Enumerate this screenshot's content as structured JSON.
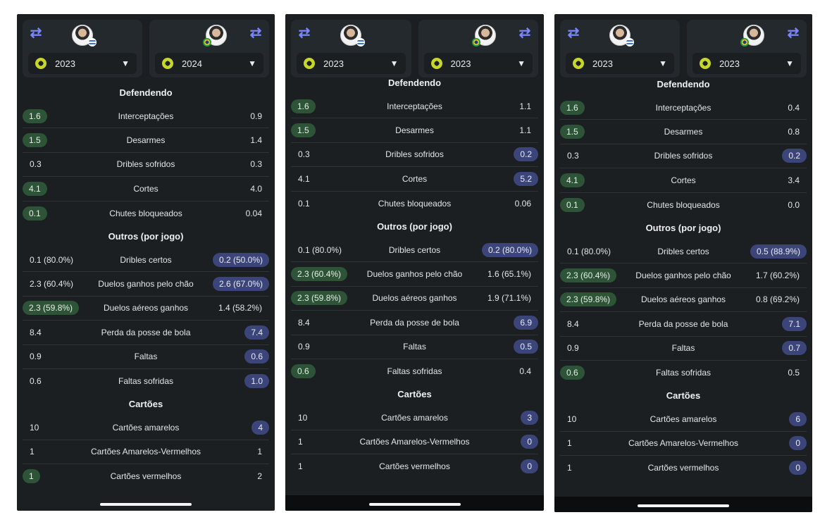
{
  "panels": [
    {
      "left": {
        "year": "2023",
        "flag": "uy"
      },
      "right": {
        "year": "2024",
        "flag": "br"
      },
      "sections": [
        {
          "title": "Defendendo",
          "rows": [
            {
              "label": "Interceptações",
              "l": "1.6",
              "lh": "g",
              "r": "0.9",
              "rh": ""
            },
            {
              "label": "Desarmes",
              "l": "1.5",
              "lh": "g",
              "r": "1.4",
              "rh": ""
            },
            {
              "label": "Dribles sofridos",
              "l": "0.3",
              "lh": "",
              "r": "0.3",
              "rh": ""
            },
            {
              "label": "Cortes",
              "l": "4.1",
              "lh": "g",
              "r": "4.0",
              "rh": ""
            },
            {
              "label": "Chutes bloqueados",
              "l": "0.1",
              "lh": "g",
              "r": "0.04",
              "rh": ""
            }
          ]
        },
        {
          "title": "Outros (por jogo)",
          "rows": [
            {
              "label": "Dribles certos",
              "l": "0.1 (80.0%)",
              "lh": "",
              "r": "0.2 (50.0%)",
              "rh": "b"
            },
            {
              "label": "Duelos ganhos pelo chão",
              "l": "2.3 (60.4%)",
              "lh": "",
              "r": "2.6 (67.0%)",
              "rh": "b"
            },
            {
              "label": "Duelos aéreos ganhos",
              "l": "2.3 (59.8%)",
              "lh": "g",
              "r": "1.4 (58.2%)",
              "rh": ""
            },
            {
              "label": "Perda da posse de bola",
              "l": "8.4",
              "lh": "",
              "r": "7.4",
              "rh": "b"
            },
            {
              "label": "Faltas",
              "l": "0.9",
              "lh": "",
              "r": "0.6",
              "rh": "b"
            },
            {
              "label": "Faltas sofridas",
              "l": "0.6",
              "lh": "",
              "r": "1.0",
              "rh": "b"
            }
          ]
        },
        {
          "title": "Cartões",
          "rows": [
            {
              "label": "Cartões amarelos",
              "l": "10",
              "lh": "",
              "r": "4",
              "rh": "b"
            },
            {
              "label": "Cartões Amarelos-Vermelhos",
              "l": "1",
              "lh": "",
              "r": "1",
              "rh": ""
            },
            {
              "label": "Cartões vermelhos",
              "l": "1",
              "lh": "g",
              "r": "2",
              "rh": ""
            }
          ]
        }
      ]
    },
    {
      "left": {
        "year": "2023",
        "flag": "uy"
      },
      "right": {
        "year": "2023",
        "flag": "br"
      },
      "sections": [
        {
          "title": "Defendendo",
          "rows": [
            {
              "label": "Interceptações",
              "l": "1.6",
              "lh": "g",
              "r": "1.1",
              "rh": ""
            },
            {
              "label": "Desarmes",
              "l": "1.5",
              "lh": "g",
              "r": "1.1",
              "rh": ""
            },
            {
              "label": "Dribles sofridos",
              "l": "0.3",
              "lh": "",
              "r": "0.2",
              "rh": "b"
            },
            {
              "label": "Cortes",
              "l": "4.1",
              "lh": "",
              "r": "5.2",
              "rh": "b"
            },
            {
              "label": "Chutes bloqueados",
              "l": "0.1",
              "lh": "",
              "r": "0.06",
              "rh": ""
            }
          ]
        },
        {
          "title": "Outros (por jogo)",
          "rows": [
            {
              "label": "Dribles certos",
              "l": "0.1 (80.0%)",
              "lh": "",
              "r": "0.2 (80.0%)",
              "rh": "b"
            },
            {
              "label": "Duelos ganhos pelo chão",
              "l": "2.3 (60.4%)",
              "lh": "g",
              "r": "1.6 (65.1%)",
              "rh": ""
            },
            {
              "label": "Duelos aéreos ganhos",
              "l": "2.3 (59.8%)",
              "lh": "g",
              "r": "1.9 (71.1%)",
              "rh": ""
            },
            {
              "label": "Perda da posse de bola",
              "l": "8.4",
              "lh": "",
              "r": "6.9",
              "rh": "b"
            },
            {
              "label": "Faltas",
              "l": "0.9",
              "lh": "",
              "r": "0.5",
              "rh": "b"
            },
            {
              "label": "Faltas sofridas",
              "l": "0.6",
              "lh": "g",
              "r": "0.4",
              "rh": ""
            }
          ]
        },
        {
          "title": "Cartões",
          "rows": [
            {
              "label": "Cartões amarelos",
              "l": "10",
              "lh": "",
              "r": "3",
              "rh": "b"
            },
            {
              "label": "Cartões Amarelos-Vermelhos",
              "l": "1",
              "lh": "",
              "r": "0",
              "rh": "b"
            },
            {
              "label": "Cartões vermelhos",
              "l": "1",
              "lh": "",
              "r": "0",
              "rh": "b"
            }
          ]
        }
      ]
    },
    {
      "left": {
        "year": "2023",
        "flag": "uy"
      },
      "right": {
        "year": "2023",
        "flag": "br"
      },
      "sections": [
        {
          "title": "Defendendo",
          "rows": [
            {
              "label": "Interceptações",
              "l": "1.6",
              "lh": "g",
              "r": "0.4",
              "rh": ""
            },
            {
              "label": "Desarmes",
              "l": "1.5",
              "lh": "g",
              "r": "0.8",
              "rh": ""
            },
            {
              "label": "Dribles sofridos",
              "l": "0.3",
              "lh": "",
              "r": "0.2",
              "rh": "b"
            },
            {
              "label": "Cortes",
              "l": "4.1",
              "lh": "g",
              "r": "3.4",
              "rh": ""
            },
            {
              "label": "Chutes bloqueados",
              "l": "0.1",
              "lh": "g",
              "r": "0.0",
              "rh": ""
            }
          ]
        },
        {
          "title": "Outros (por jogo)",
          "rows": [
            {
              "label": "Dribles certos",
              "l": "0.1 (80.0%)",
              "lh": "",
              "r": "0.5 (88.9%)",
              "rh": "b"
            },
            {
              "label": "Duelos ganhos pelo chão",
              "l": "2.3 (60.4%)",
              "lh": "g",
              "r": "1.7 (60.2%)",
              "rh": ""
            },
            {
              "label": "Duelos aéreos ganhos",
              "l": "2.3 (59.8%)",
              "lh": "g",
              "r": "0.8 (69.2%)",
              "rh": ""
            },
            {
              "label": "Perda da posse de bola",
              "l": "8.4",
              "lh": "",
              "r": "7.1",
              "rh": "b"
            },
            {
              "label": "Faltas",
              "l": "0.9",
              "lh": "",
              "r": "0.7",
              "rh": "b"
            },
            {
              "label": "Faltas sofridas",
              "l": "0.6",
              "lh": "g",
              "r": "0.5",
              "rh": ""
            }
          ]
        },
        {
          "title": "Cartões",
          "rows": [
            {
              "label": "Cartões amarelos",
              "l": "10",
              "lh": "",
              "r": "6",
              "rh": "b"
            },
            {
              "label": "Cartões Amarelos-Vermelhos",
              "l": "1",
              "lh": "",
              "r": "0",
              "rh": "b"
            },
            {
              "label": "Cartões vermelhos",
              "l": "1",
              "lh": "",
              "r": "0",
              "rh": "b"
            }
          ]
        }
      ]
    }
  ]
}
